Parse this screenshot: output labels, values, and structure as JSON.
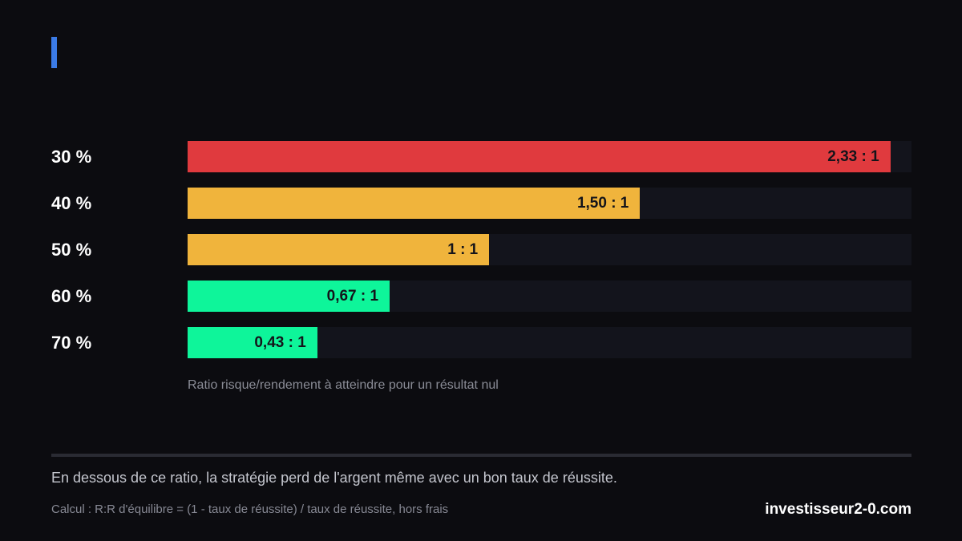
{
  "chart_data": {
    "type": "bar",
    "orientation": "horizontal",
    "categories": [
      "30 %",
      "40 %",
      "50 %",
      "60 %",
      "70 %"
    ],
    "values": [
      2.33,
      1.5,
      1.0,
      0.67,
      0.43
    ],
    "value_labels": [
      "2,33 : 1",
      "1,50 : 1",
      "1 : 1",
      "0,67 : 1",
      "0,43 : 1"
    ],
    "colors": [
      "#e03a3e",
      "#f0b43c",
      "#f0b43c",
      "#0ef59a",
      "#0ef59a"
    ],
    "xlim": [
      0,
      2.4
    ],
    "xlabel": "Ratio risque/rendement à atteindre pour un résultat nul",
    "grid": false,
    "legend": "none"
  },
  "accent_color": "#3b7be6",
  "footer": {
    "note": "En dessous de ce ratio, la stratégie perd de l'argent même avec un bon taux de réussite.",
    "formula": "Calcul : R:R d'équilibre = (1 - taux de réussite) / taux de réussite, hors frais",
    "brand": "investisseur2-0.com"
  }
}
